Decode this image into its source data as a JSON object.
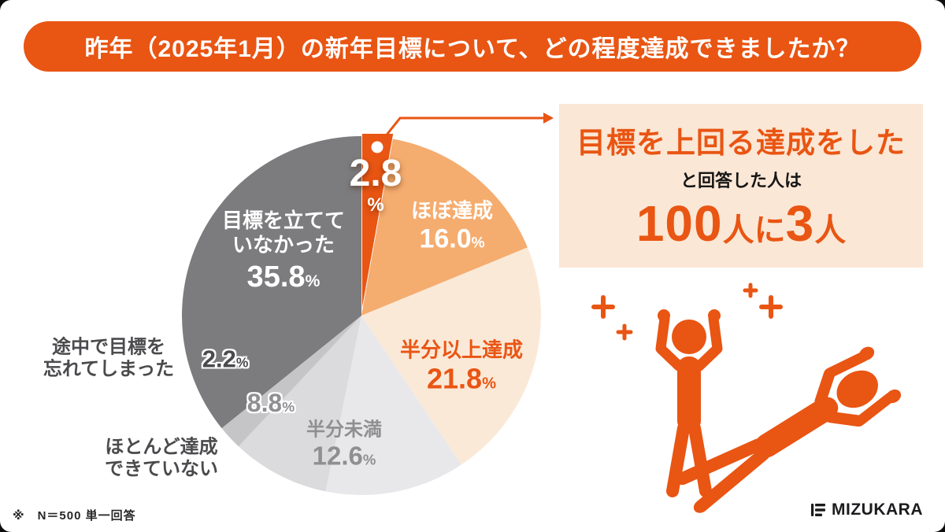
{
  "title": "昨年（2025年1月）の新年目標について、どの程度達成できましたか？",
  "chart_data": {
    "type": "pie",
    "title": "昨年（2025年1月）の新年目標について、どの程度達成できましたか？",
    "direction": "clockwise",
    "start_angle_deg": 0,
    "legend_position": "inline-labels",
    "segments": [
      {
        "label": "目標を上回る達成をした",
        "value": 2.8,
        "color": "#E95513",
        "exploded": true
      },
      {
        "label": "ほぼ達成",
        "value": 16.0,
        "color": "#F5AC6F"
      },
      {
        "label": "半分以上達成",
        "value": 21.8,
        "color": "#FBE9D8"
      },
      {
        "label": "半分未満",
        "value": 12.6,
        "color": "#E8E8EA"
      },
      {
        "label": "ほとんど達成できていない",
        "value": 8.8,
        "color": "#DBDBDD"
      },
      {
        "label": "途中で目標を忘れてしまった",
        "value": 2.2,
        "color": "#C5C5C7"
      },
      {
        "label": "目標を立てていなかった",
        "value": 35.8,
        "color": "#7C7C7E"
      }
    ],
    "sample_note": "※　N＝500 単一回答"
  },
  "pie_labels": {
    "percent": "%",
    "exceeded_value": "2.8",
    "almost_label": "ほぼ達成",
    "almost_value": "16.0",
    "half_plus_label": "半分以上達成",
    "half_plus_value": "21.8",
    "half_minus_label": "半分未満",
    "half_minus_value": "12.6",
    "little_value": "8.8",
    "little_label_line1": "ほとんど達成",
    "little_label_line2": "できていない",
    "forgot_value": "2.2",
    "forgot_label_line1": "途中で目標を",
    "forgot_label_line2": "忘れてしまった",
    "none_label_line1": "目標を立てて",
    "none_label_line2": "いなかった",
    "none_value": "35.8"
  },
  "callout": {
    "headline": "目標を上回る達成をした",
    "sub": "と回答した人は",
    "big_num1": "100",
    "big_mid": "人に",
    "big_num2": "3",
    "big_end": "人"
  },
  "footer": {
    "note": "※　N＝500 単一回答",
    "brand": "MIZUKARA"
  },
  "colors": {
    "accent": "#E95513",
    "callout_bg": "#FBE7D5",
    "dark_slice": "#7C7C7E"
  }
}
